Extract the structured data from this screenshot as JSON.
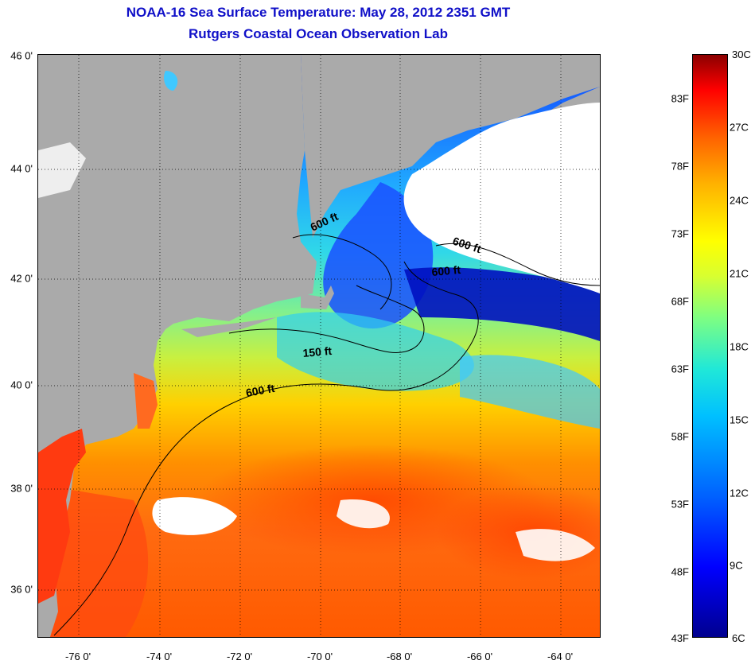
{
  "title": "NOAA-16 Sea Surface Temperature:  May 28, 2012 2351 GMT",
  "subtitle": "Rutgers Coastal Ocean Observation Lab",
  "map": {
    "lat_labels": [
      "46 0'",
      "44 0'",
      "42 0'",
      "40 0'",
      "38 0'",
      "36 0'"
    ],
    "lon_labels": [
      "-76 0'",
      "-74 0'",
      "-72 0'",
      "-70 0'",
      "-68 0'",
      "-66 0'",
      "-64 0'"
    ],
    "depth_labels": [
      "600 ft",
      "600 ft",
      "600 ft",
      "150 ft",
      "600 ft"
    ],
    "colors": {
      "land": "#aaaaaa",
      "cloud": "#ffffff"
    }
  },
  "colorbar": {
    "fahrenheit": [
      "83F",
      "78F",
      "73F",
      "68F",
      "63F",
      "58F",
      "53F",
      "48F",
      "43F"
    ],
    "celsius": [
      "30C",
      "27C",
      "24C",
      "21C",
      "18C",
      "15C",
      "12C",
      "9C",
      "6C"
    ]
  }
}
